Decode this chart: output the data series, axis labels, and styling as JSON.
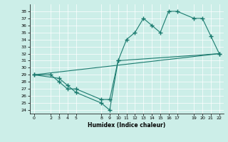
{
  "xlabel": "Humidex (Indice chaleur)",
  "bg_color": "#cceee8",
  "line_color": "#1a7a6e",
  "xlim": [
    -0.5,
    22.5
  ],
  "ylim": [
    23.5,
    39.0
  ],
  "yticks": [
    24,
    25,
    26,
    27,
    28,
    29,
    30,
    31,
    32,
    33,
    34,
    35,
    36,
    37,
    38
  ],
  "xticks": [
    0,
    2,
    3,
    4,
    5,
    8,
    9,
    10,
    11,
    12,
    13,
    14,
    15,
    16,
    17,
    19,
    20,
    21,
    22
  ],
  "line1": [
    [
      0,
      29
    ],
    [
      2,
      29
    ],
    [
      3,
      28
    ],
    [
      4,
      27
    ],
    [
      5,
      27
    ],
    [
      8,
      25.5
    ],
    [
      9,
      25.5
    ],
    [
      10,
      31
    ],
    [
      11,
      34
    ],
    [
      12,
      35
    ],
    [
      13,
      37
    ],
    [
      14,
      36
    ],
    [
      15,
      35
    ],
    [
      16,
      38
    ],
    [
      17,
      38
    ],
    [
      19,
      37
    ],
    [
      20,
      37
    ],
    [
      21,
      34.5
    ],
    [
      22,
      32
    ]
  ],
  "line2": [
    [
      0,
      29
    ],
    [
      3,
      28.5
    ],
    [
      4,
      27.5
    ],
    [
      5,
      26.5
    ],
    [
      8,
      25
    ],
    [
      9,
      24
    ],
    [
      10,
      31
    ],
    [
      22,
      32
    ]
  ],
  "line3": [
    [
      0,
      29
    ],
    [
      22,
      32
    ]
  ]
}
